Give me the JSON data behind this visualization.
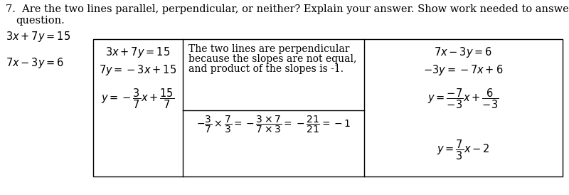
{
  "bg_color": "#ffffff",
  "text_color": "#000000",
  "box_edge_color": "#000000",
  "title_line1": "7.  Are the two lines parallel, perpendicular, or neither? Explain your answer. Show work needed to answer the",
  "title_line2": "question.",
  "given_eq1": "$3x + 7y = 15$",
  "given_eq2": "$7x - 3y = 6$",
  "col1_eq1": "$3x + 7y = 15$",
  "col1_eq2": "$7y = -3x + 15$",
  "col1_eq3_a": "3",
  "col1_eq3_b": "15",
  "col1_eq3_c": "7",
  "col1_eq3_d": "7",
  "col2_text1": "The two lines are perpendicular",
  "col2_text2": "because the slopes are not equal,",
  "col2_text3": "and product of the slopes is -1.",
  "col3_eq1": "$7x - 3y = 6$",
  "col3_eq2": "$-3y = -7x + 6$",
  "col3_eq3_num": "-7",
  "col3_eq3_den": "-3",
  "col3_eq4_num": "6",
  "col3_eq4_den": "-3",
  "col3_eq5": "7",
  "col3_eq5_den": "3",
  "font_size_title": 10.5,
  "font_size_body": 10,
  "font_size_math": 10.5
}
